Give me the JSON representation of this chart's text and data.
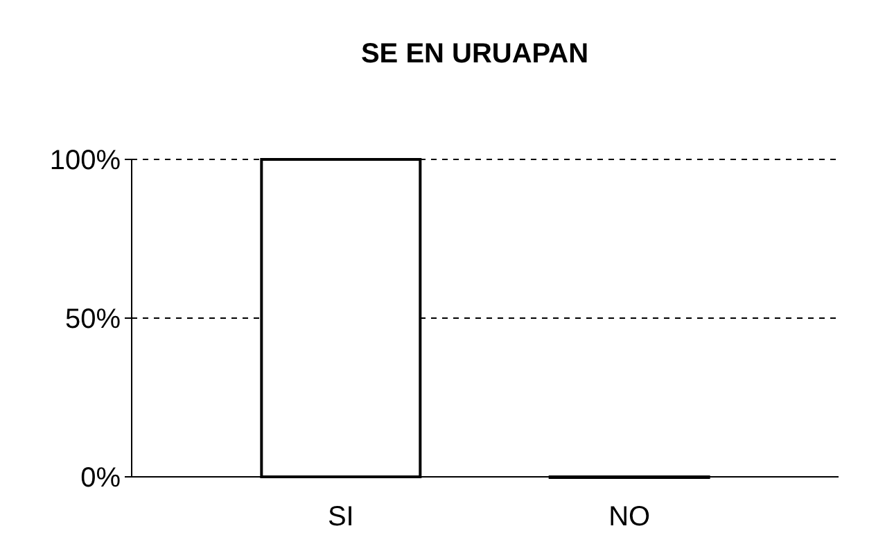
{
  "chart_data": {
    "type": "bar",
    "title": "SE EN URUAPAN",
    "categories": [
      "SI",
      "NO"
    ],
    "values": [
      100,
      0
    ],
    "color": "#ffffff",
    "ylim": [
      0,
      100
    ],
    "yticks": [
      {
        "value": 0,
        "label": "0%"
      },
      {
        "value": 50,
        "label": "50%"
      },
      {
        "value": 100,
        "label": "100%"
      }
    ],
    "grid": "y"
  }
}
